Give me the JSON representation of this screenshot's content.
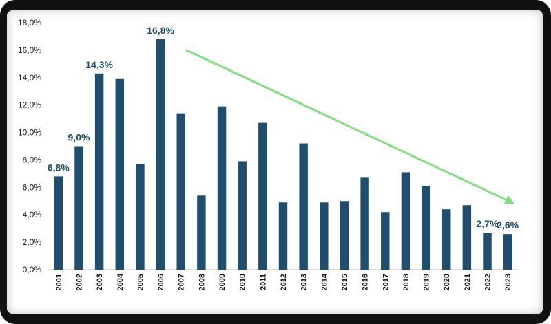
{
  "chart_data": {
    "type": "bar",
    "categories": [
      "2001",
      "2002",
      "2003",
      "2004",
      "2005",
      "2006",
      "2007",
      "2008",
      "2009",
      "2010",
      "2011",
      "2012",
      "2013",
      "2014",
      "2015",
      "2016",
      "2017",
      "2018",
      "2019",
      "2020",
      "2021",
      "2022",
      "2023"
    ],
    "values": [
      6.8,
      9.0,
      14.3,
      13.9,
      7.7,
      16.8,
      11.4,
      5.4,
      11.9,
      7.9,
      10.7,
      4.9,
      9.2,
      4.9,
      5.0,
      6.7,
      4.2,
      7.1,
      6.1,
      4.4,
      4.7,
      2.7,
      2.6
    ],
    "ylim": [
      0,
      18
    ],
    "yticks": [
      0,
      2,
      4,
      6,
      8,
      10,
      12,
      14,
      16,
      18
    ],
    "ytick_labels": [
      "0,0%",
      "2,0%",
      "4,0%",
      "6,0%",
      "8,0%",
      "10,0%",
      "12,0%",
      "14,0%",
      "16,0%",
      "18,0%"
    ],
    "data_labels": [
      {
        "category": "2001",
        "text": "6,8%"
      },
      {
        "category": "2002",
        "text": "9,0%"
      },
      {
        "category": "2003",
        "text": "14,3%"
      },
      {
        "category": "2006",
        "text": "16,8%"
      },
      {
        "category": "2022",
        "text": "2,7%"
      },
      {
        "category": "2023",
        "text": "2,6%"
      }
    ],
    "trend_arrow": {
      "from_category": "2007",
      "from_value": 16.0,
      "to_category": "2023",
      "to_value": 4.8
    },
    "title": "",
    "xlabel": "",
    "ylabel": "",
    "grid": false,
    "legend": "none"
  },
  "colors": {
    "bar": "#1f4e6e",
    "label": "#1f4e6e",
    "arrow": "#7ee07e",
    "axis": "#bfbfbf"
  }
}
